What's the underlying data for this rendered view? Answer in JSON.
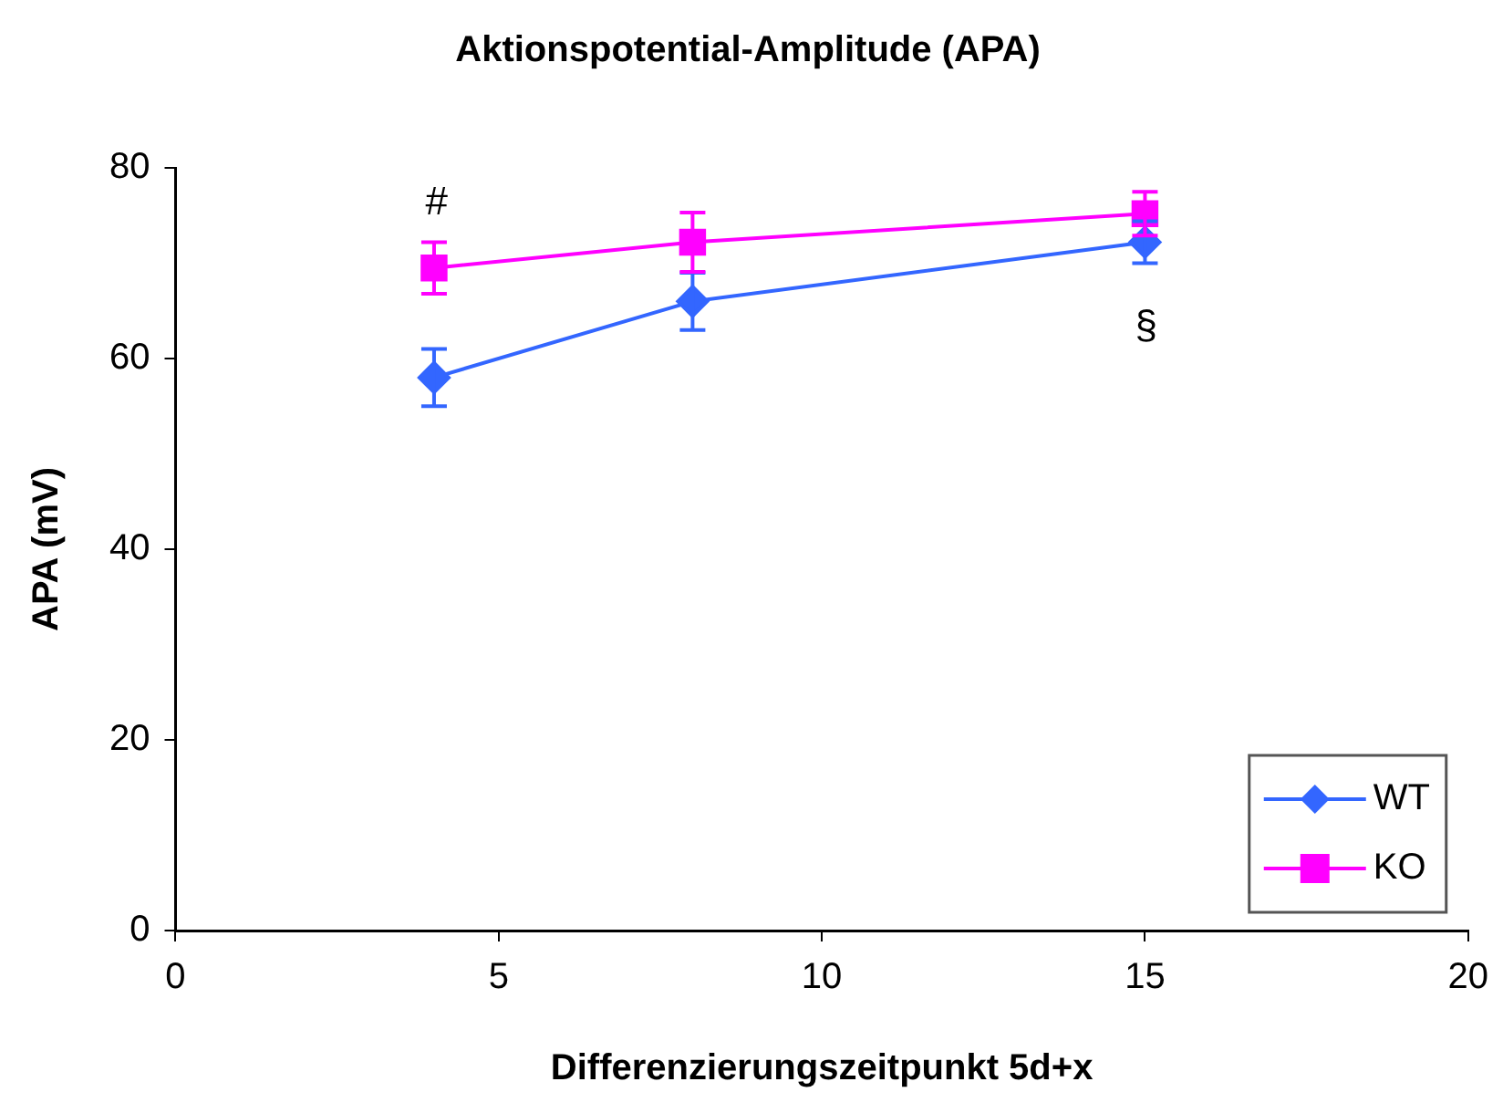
{
  "chart_data": {
    "type": "line",
    "title": "Aktionspotential-Amplitude (APA)",
    "xlabel": "Differenzierungszeitpunkt 5d+x",
    "ylabel": "APA (mV)",
    "x": [
      4,
      8,
      15
    ],
    "series": [
      {
        "name": "WT",
        "color": "#3366ff",
        "marker": "diamond",
        "values": [
          58,
          66,
          72.2
        ],
        "errors": [
          3,
          3,
          2.2
        ]
      },
      {
        "name": "KO",
        "color": "#ff00ff",
        "marker": "square",
        "values": [
          69.5,
          72.2,
          75.2
        ],
        "errors": [
          2.7,
          3.1,
          2.3
        ]
      }
    ],
    "xlim": [
      0,
      20
    ],
    "xticks": [
      0,
      5,
      10,
      15,
      20
    ],
    "ylim": [
      0,
      80
    ],
    "yticks": [
      0,
      20,
      40,
      60,
      80
    ],
    "grid": false,
    "legend": "bottom right",
    "line_style": "solid",
    "annotations": [
      "#",
      "§"
    ]
  }
}
